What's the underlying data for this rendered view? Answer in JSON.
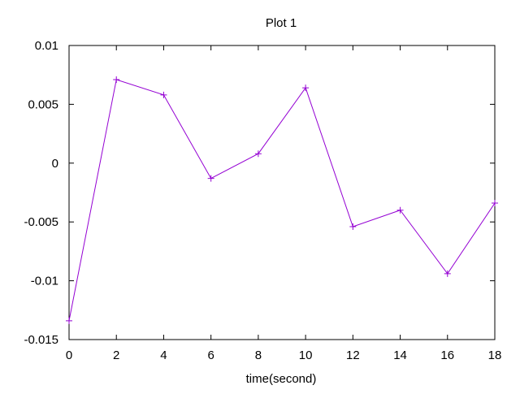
{
  "chart_data": {
    "type": "line",
    "title": "Plot 1",
    "xlabel": "time(second)",
    "ylabel": "",
    "xlim": [
      0,
      18
    ],
    "ylim": [
      -0.015,
      0.01
    ],
    "x_ticks": [
      0,
      2,
      4,
      6,
      8,
      10,
      12,
      14,
      16,
      18
    ],
    "x_tick_labels": [
      "0",
      "2",
      "4",
      "6",
      "8",
      "10",
      "12",
      "14",
      "16",
      "18"
    ],
    "y_ticks": [
      -0.015,
      -0.01,
      -0.005,
      0,
      0.005,
      0.01
    ],
    "y_tick_labels": [
      "-0.015",
      "-0.01",
      "-0.005",
      "0",
      "0.005",
      "0.01"
    ],
    "grid": false,
    "legend": "none",
    "marker": "plus",
    "series": [
      {
        "color": "#9400d3",
        "x": [
          0,
          2,
          4,
          6,
          8,
          10,
          12,
          14,
          16,
          18
        ],
        "y": [
          -0.0134,
          0.0071,
          0.0058,
          -0.0013,
          0.0008,
          0.0064,
          -0.0054,
          -0.004,
          -0.0094,
          -0.0034
        ]
      }
    ]
  }
}
